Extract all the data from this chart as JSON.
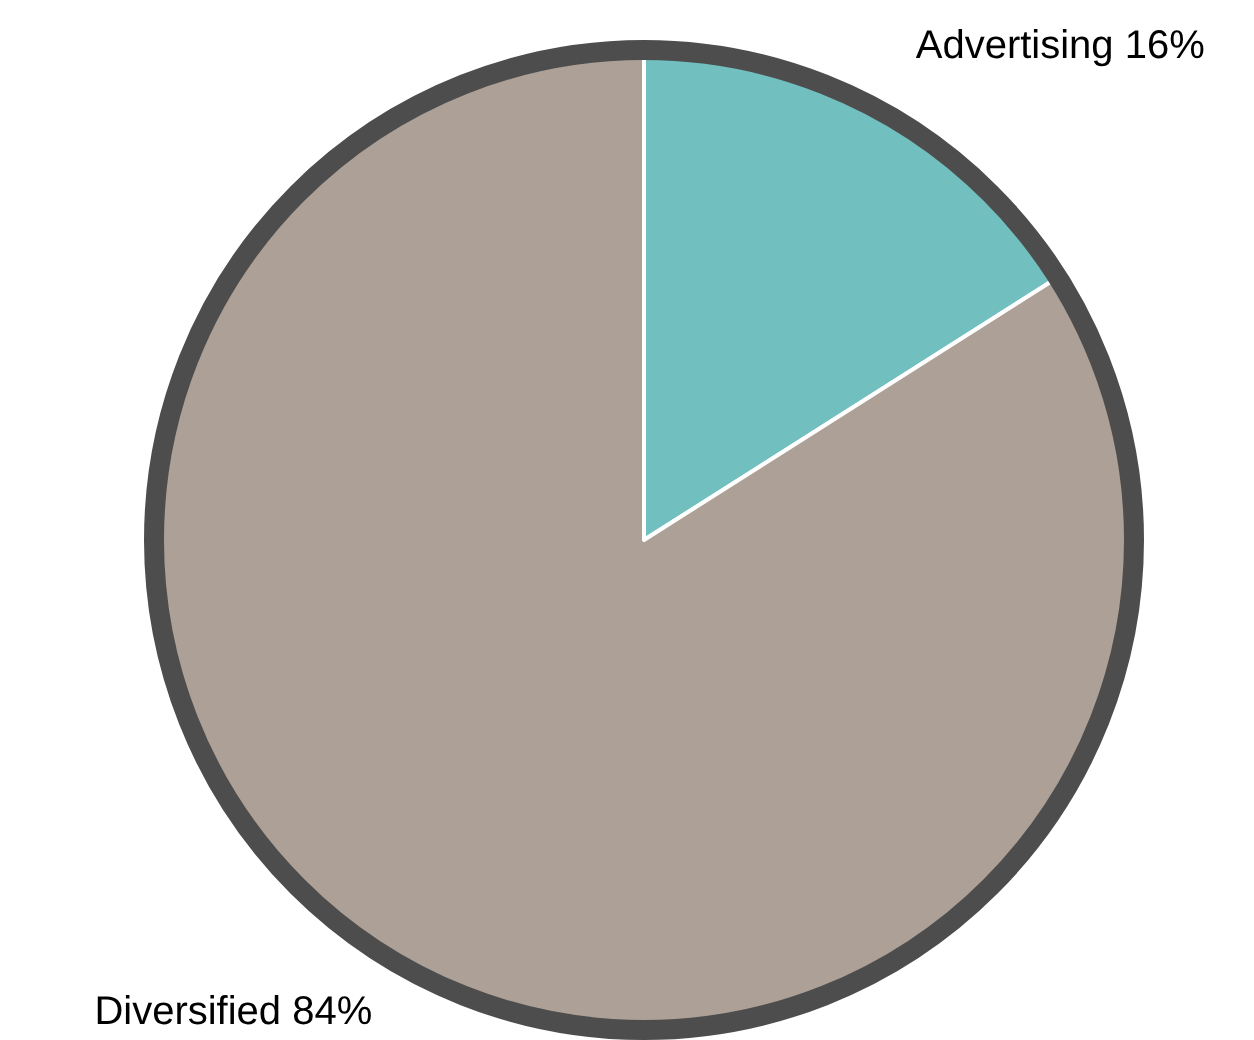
{
  "chart_data": {
    "type": "pie",
    "categories": [
      "Advertising",
      "Diversified"
    ],
    "values": [
      16,
      84
    ],
    "colors": [
      "#72bfbf",
      "#ada097"
    ],
    "value_labels": [
      "16%",
      "84%"
    ],
    "legend": false
  }
}
